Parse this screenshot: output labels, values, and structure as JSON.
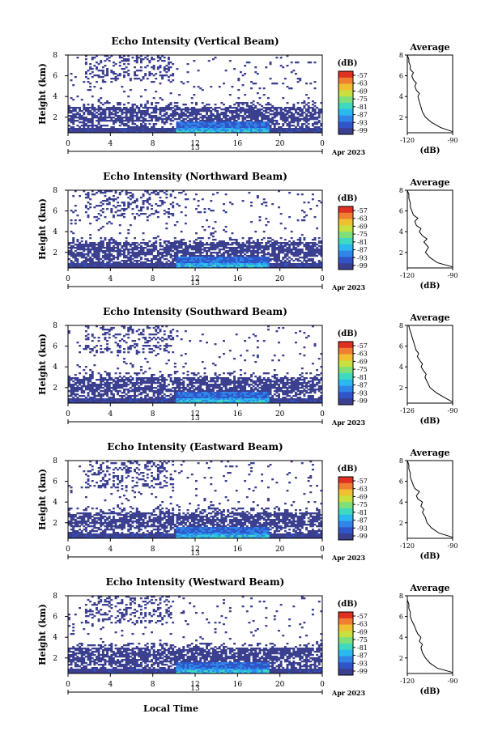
{
  "page": {
    "xlabel": "Local Time",
    "date_label": "Apr 2023",
    "day_label": "13"
  },
  "palette": {
    "colorbar_unit": "(dB)",
    "colorbar_ticks": [
      "-57",
      "-63",
      "-69",
      "-75",
      "-81",
      "-87",
      "-93",
      "-99"
    ],
    "colors": [
      "#3b3f8f",
      "#2f55c8",
      "#2f86e8",
      "#2ab8f0",
      "#3fd9c0",
      "#7fe07a",
      "#c8e040",
      "#f0c030",
      "#f08030",
      "#e03020"
    ]
  },
  "chart_data": [
    {
      "type": "heatmap",
      "title": "Echo Intensity (Vertical Beam)",
      "ylabel": "Height (km)",
      "x_ticks": [
        "0",
        "4",
        "8",
        "12",
        "16",
        "20",
        "0"
      ],
      "y_ticks": [
        "2",
        "4",
        "6",
        "8"
      ],
      "xlim": [
        0,
        24
      ],
      "ylim": [
        0.5,
        8
      ],
      "profile": {
        "title": "Average",
        "xlabel": "(dB)",
        "x_ticks": [
          "-120",
          "-90"
        ],
        "y_ticks": [
          "2",
          "4",
          "6",
          "8"
        ],
        "xlim": [
          -120,
          -90
        ],
        "ylim": [
          0.5,
          8
        ],
        "x": [
          -90,
          -98,
          -104,
          -108,
          -110,
          -111,
          -112,
          -113,
          -112,
          -114,
          -115,
          -114,
          -116,
          -117,
          -116,
          -118,
          -118,
          -119,
          -119,
          -120
        ],
        "y": [
          0.6,
          1.0,
          1.5,
          2.0,
          2.5,
          3.0,
          3.5,
          4.0,
          4.3,
          4.6,
          5.0,
          5.3,
          5.6,
          6.0,
          6.3,
          6.6,
          7.0,
          7.3,
          7.6,
          8.0
        ]
      }
    },
    {
      "type": "heatmap",
      "title": "Echo Intensity (Northward Beam)",
      "ylabel": "Height (km)",
      "x_ticks": [
        "0",
        "4",
        "8",
        "12",
        "16",
        "20",
        "0"
      ],
      "y_ticks": [
        "2",
        "4",
        "6",
        "8"
      ],
      "xlim": [
        0,
        24
      ],
      "ylim": [
        0.5,
        8
      ],
      "profile": {
        "title": "Average",
        "xlabel": "(dB)",
        "x_ticks": [
          "-120",
          "-90"
        ],
        "y_ticks": [
          "2",
          "4",
          "6",
          "8"
        ],
        "xlim": [
          -120,
          -90
        ],
        "ylim": [
          0.5,
          8
        ],
        "x": [
          -90,
          -100,
          -105,
          -108,
          -106,
          -109,
          -107,
          -110,
          -112,
          -111,
          -114,
          -115,
          -113,
          -116,
          -117,
          -118,
          -118,
          -119,
          -119,
          -120
        ],
        "y": [
          0.6,
          1.0,
          1.5,
          2.0,
          2.5,
          3.0,
          3.3,
          3.6,
          4.0,
          4.3,
          4.6,
          5.0,
          5.3,
          5.6,
          6.0,
          6.4,
          6.8,
          7.2,
          7.6,
          8.0
        ]
      }
    },
    {
      "type": "heatmap",
      "title": "Echo Intensity (Southward Beam)",
      "ylabel": "Height (km)",
      "x_ticks": [
        "0",
        "4",
        "8",
        "12",
        "16",
        "20",
        "0"
      ],
      "y_ticks": [
        "2",
        "4",
        "6",
        "8"
      ],
      "xlim": [
        0,
        24
      ],
      "ylim": [
        0.5,
        8
      ],
      "profile": {
        "title": "Average",
        "xlabel": "(dB)",
        "x_ticks": [
          "-126",
          "-90"
        ],
        "y_ticks": [
          "2",
          "4",
          "6",
          "8"
        ],
        "xlim": [
          -126,
          -90
        ],
        "ylim": [
          0.5,
          8
        ],
        "x": [
          -90,
          -96,
          -103,
          -108,
          -110,
          -112,
          -111,
          -113,
          -115,
          -114,
          -116,
          -118,
          -117,
          -119,
          -120,
          -121,
          -122,
          -123,
          -124,
          -125
        ],
        "y": [
          0.6,
          1.0,
          1.5,
          2.0,
          2.5,
          3.0,
          3.3,
          3.6,
          4.0,
          4.3,
          4.6,
          5.0,
          5.3,
          5.6,
          6.0,
          6.4,
          6.8,
          7.2,
          7.6,
          8.0
        ]
      }
    },
    {
      "type": "heatmap",
      "title": "Echo Intensity (Eastward Beam)",
      "ylabel": "Height (km)",
      "x_ticks": [
        "0",
        "4",
        "8",
        "12",
        "16",
        "20",
        "0"
      ],
      "y_ticks": [
        "2",
        "4",
        "6",
        "8"
      ],
      "xlim": [
        0,
        24
      ],
      "ylim": [
        0.5,
        8
      ],
      "profile": {
        "title": "Average",
        "xlabel": "(dB)",
        "x_ticks": [
          "-120",
          "-90"
        ],
        "y_ticks": [
          "2",
          "4",
          "6",
          "8"
        ],
        "xlim": [
          -120,
          -90
        ],
        "ylim": [
          0.5,
          8
        ],
        "x": [
          -90,
          -99,
          -104,
          -107,
          -108,
          -110,
          -109,
          -111,
          -110,
          -113,
          -114,
          -112,
          -115,
          -116,
          -117,
          -118,
          -118,
          -119,
          -119,
          -120
        ],
        "y": [
          0.6,
          1.0,
          1.5,
          2.0,
          2.5,
          3.0,
          3.3,
          3.6,
          4.0,
          4.3,
          4.6,
          5.0,
          5.3,
          5.6,
          6.0,
          6.4,
          6.8,
          7.2,
          7.6,
          8.0
        ]
      }
    },
    {
      "type": "heatmap",
      "title": "Echo Intensity (Westward Beam)",
      "ylabel": "Height (km)",
      "x_ticks": [
        "0",
        "4",
        "8",
        "12",
        "16",
        "20",
        "0"
      ],
      "y_ticks": [
        "2",
        "4",
        "6",
        "8"
      ],
      "xlim": [
        0,
        24
      ],
      "ylim": [
        0.5,
        8
      ],
      "profile": {
        "title": "Average",
        "xlabel": "(dB)",
        "x_ticks": [
          "-120",
          "-90"
        ],
        "y_ticks": [
          "2",
          "4",
          "6",
          "8"
        ],
        "xlim": [
          -120,
          -90
        ],
        "ylim": [
          0.5,
          8
        ],
        "x": [
          -90,
          -100,
          -105,
          -108,
          -110,
          -111,
          -110,
          -112,
          -111,
          -113,
          -114,
          -115,
          -116,
          -117,
          -118,
          -118,
          -119,
          -119,
          -120,
          -120
        ],
        "y": [
          0.6,
          1.0,
          1.5,
          2.0,
          2.5,
          3.0,
          3.3,
          3.6,
          4.0,
          4.3,
          4.6,
          5.0,
          5.3,
          5.6,
          6.0,
          6.4,
          6.8,
          7.2,
          7.6,
          8.0
        ]
      }
    }
  ]
}
